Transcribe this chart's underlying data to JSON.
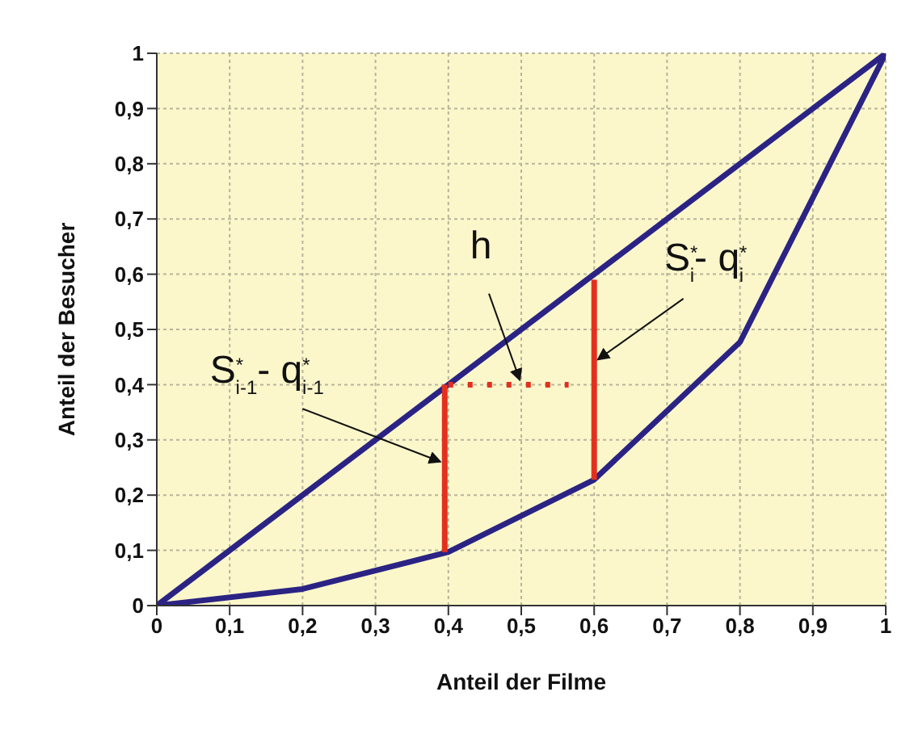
{
  "chart_data": {
    "type": "line",
    "xlabel": "Anteil der Filme",
    "ylabel": "Anteil der Besucher",
    "xlim": [
      0,
      1
    ],
    "ylim": [
      0,
      1
    ],
    "xticks": [
      0,
      {
        "value": 0.1,
        "label": "0,1"
      },
      {
        "value": 0.2,
        "label": "0,2"
      },
      {
        "value": 0.3,
        "label": "0,3"
      },
      {
        "value": 0.4,
        "label": "0,4"
      },
      {
        "value": 0.5,
        "label": "0,5"
      },
      {
        "value": 0.6,
        "label": "0,6"
      },
      {
        "value": 0.7,
        "label": "0,7"
      },
      {
        "value": 0.8,
        "label": "0,8"
      },
      {
        "value": 0.9,
        "label": "0,9"
      },
      1
    ],
    "yticks": [
      0,
      {
        "value": 0.1,
        "label": "0,1"
      },
      {
        "value": 0.2,
        "label": "0,2"
      },
      {
        "value": 0.3,
        "label": "0,3"
      },
      {
        "value": 0.4,
        "label": "0,4"
      },
      {
        "value": 0.5,
        "label": "0,5"
      },
      {
        "value": 0.6,
        "label": "0,6"
      },
      {
        "value": 0.7,
        "label": "0,7"
      },
      {
        "value": 0.8,
        "label": "0,8"
      },
      {
        "value": 0.9,
        "label": "0,9"
      },
      1
    ],
    "grid": true,
    "marker": "none",
    "series": [
      {
        "color": "#2b2384",
        "x": [
          0,
          1
        ],
        "values": [
          0,
          1
        ]
      },
      {
        "color": "#2b2384",
        "x": [
          0,
          0.2,
          0.4,
          0.6,
          0.8,
          1
        ],
        "values": [
          0,
          0.03,
          0.097,
          0.228,
          0.477,
          1
        ]
      },
      {
        "color": "#e3301e",
        "x": [
          0.395,
          0.395
        ],
        "values": [
          0.097,
          0.4
        ]
      },
      {
        "color": "#e3301e",
        "x": [
          0.6,
          0.6
        ],
        "values": [
          0.228,
          0.59
        ]
      },
      {
        "color": "#e3301e",
        "x": [
          0.4,
          0.565
        ],
        "values": [
          0.4,
          0.4
        ],
        "line_style": "dotted"
      }
    ],
    "annotations": [
      {
        "text": "S$^{*}$$_{i-1}$- q$^{*}$$_{i-1}$",
        "x": 0.395,
        "y": 0.257
      },
      {
        "text": "h",
        "x": 0.5,
        "y": 0.4
      },
      {
        "text": "S$^{*}$$_{i}$- q$^{*}$$_{i}$",
        "x": 0.6,
        "y": 0.44
      }
    ]
  }
}
